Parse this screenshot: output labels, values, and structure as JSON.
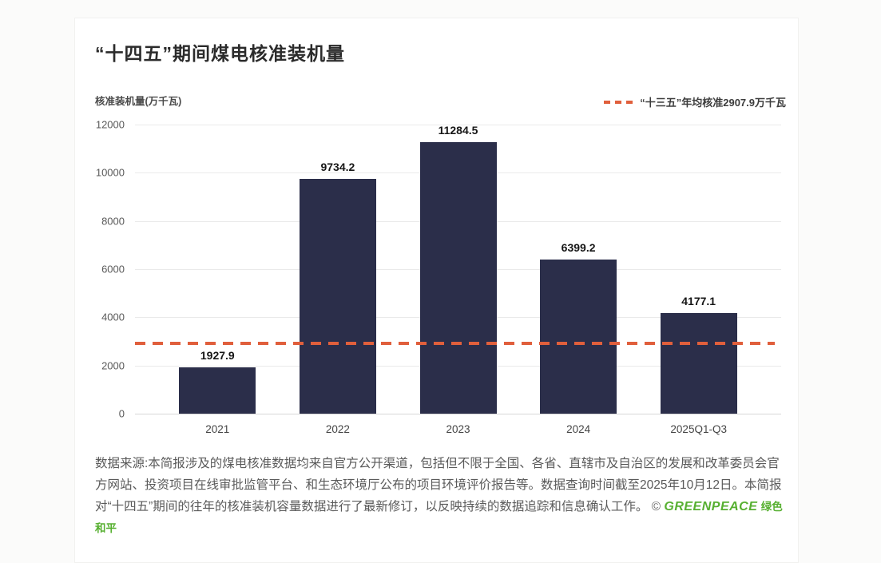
{
  "chart_data": {
    "type": "bar",
    "title": "“十四五”期间煤电核准装机量",
    "y_unit_label": "核准装机量(万千瓦)",
    "categories": [
      "2021",
      "2022",
      "2023",
      "2024",
      "2025Q1-Q3"
    ],
    "values": [
      1927.9,
      9734.2,
      11284.5,
      6399.2,
      4177.1
    ],
    "value_labels": [
      "1927.9",
      "9734.2",
      "11284.5",
      "6399.2",
      "4177.1"
    ],
    "ylim": [
      0,
      12000
    ],
    "yticks": [
      0,
      2000,
      4000,
      6000,
      8000,
      10000,
      12000
    ],
    "grid": true,
    "bar_color": "#2b2e4a",
    "reference_line": {
      "value": 2907.9,
      "label": "“十三五”年均核准2907.9万千瓦",
      "color": "#e05f3c"
    },
    "legend_position": "top-right"
  },
  "footer": {
    "text": "数据来源:本简报涉及的煤电核准数据均来自官方公开渠道，包括但不限于全国、各省、直辖市及自治区的发展和改革委员会官方网站、投资项目在线审批监管平台、和生态环境厅公布的项目环境评价报告等。数据查询时间截至2025年10月12日。本简报对“十四五”期间的往年的核准装机容量数据进行了最新修订，以反映持续的数据追踪和信息确认工作。",
    "copyright": "©",
    "brand": "GREENPEACE",
    "brand_cn": "绿色和平",
    "brand_color": "#57b031"
  }
}
